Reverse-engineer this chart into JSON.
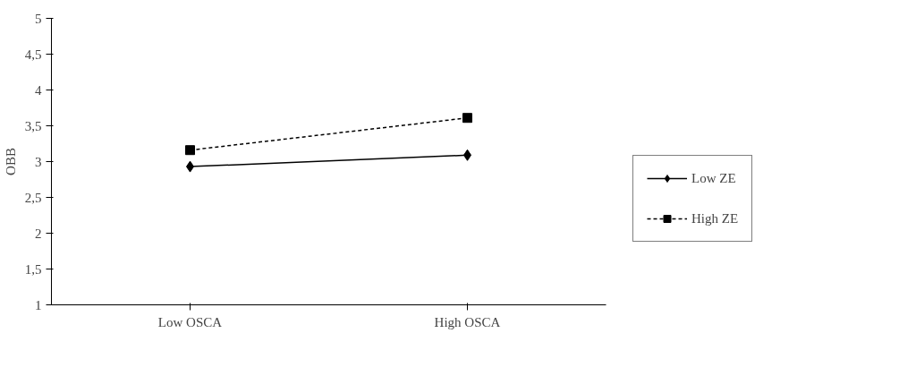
{
  "chart_data": {
    "type": "line",
    "ylabel": "OBB",
    "categories": [
      "Low OSCA",
      "High OSCA"
    ],
    "series": [
      {
        "name": "Low ZE",
        "color": "#000000",
        "values": [
          2.93,
          3.09
        ],
        "marker": "diamond",
        "line_style": "solid"
      },
      {
        "name": "High ZE",
        "color": "#000000",
        "values": [
          3.16,
          3.61
        ],
        "marker": "square",
        "line_style": "dashed"
      }
    ],
    "ylim": [
      1,
      5
    ],
    "yticks": [
      1,
      {
        "value": 1.5,
        "label": "1,5"
      },
      2,
      {
        "value": 2.5,
        "label": "2,5"
      },
      3,
      {
        "value": 3.5,
        "label": "3,5"
      },
      4,
      {
        "value": 4.5,
        "label": "4,5"
      },
      5
    ],
    "grid": false,
    "legend": "right"
  }
}
